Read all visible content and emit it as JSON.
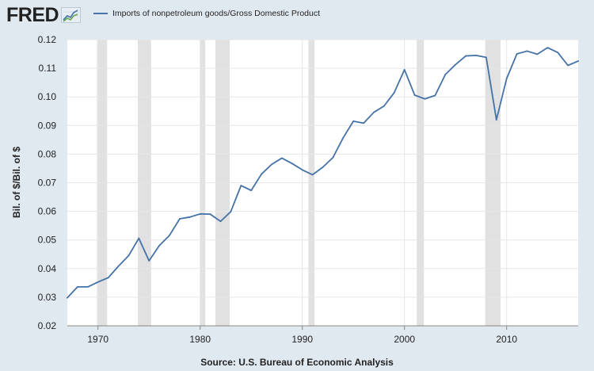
{
  "brand": {
    "logo_text": "FRED",
    "logo_icon": "line-chart-icon"
  },
  "colors": {
    "background": "#e1e9f0",
    "plot_background": "#ffffff",
    "series_line": "#4572a7",
    "recession_band": "#e1e1e1",
    "grid": "#e6e6e6"
  },
  "source_text": "Source: U.S. Bureau of Economic Analysis",
  "chart_data": {
    "type": "line",
    "title": "",
    "xlabel": "",
    "ylabel": "Bil. of $/Bil. of $",
    "xlim": [
      1967,
      2017
    ],
    "ylim": [
      0.02,
      0.12
    ],
    "y_ticks": [
      0.02,
      0.03,
      0.04,
      0.05,
      0.06,
      0.07,
      0.08,
      0.09,
      0.1,
      0.11,
      0.12
    ],
    "y_tick_labels": [
      "0.02",
      "0.03",
      "0.04",
      "0.05",
      "0.06",
      "0.07",
      "0.08",
      "0.09",
      "0.10",
      "0.11",
      "0.12"
    ],
    "x_ticks": [
      1970,
      1980,
      1990,
      2000,
      2010
    ],
    "x_tick_labels": [
      "1970",
      "1980",
      "1990",
      "2000",
      "2010"
    ],
    "grid": true,
    "legend_position": "top-left",
    "recessions": [
      [
        1969.9,
        1970.9
      ],
      [
        1973.9,
        1975.2
      ],
      [
        1980.0,
        1980.5
      ],
      [
        1981.5,
        1982.9
      ],
      [
        1990.6,
        1991.2
      ],
      [
        2001.2,
        2001.9
      ],
      [
        2007.9,
        2009.4
      ]
    ],
    "series": [
      {
        "name": "Imports of nonpetroleum goods/Gross Domestic Product",
        "x": [
          1967,
          1968,
          1969,
          1970,
          1971,
          1972,
          1973,
          1974,
          1975,
          1976,
          1977,
          1978,
          1979,
          1980,
          1981,
          1982,
          1983,
          1984,
          1985,
          1986,
          1987,
          1988,
          1989,
          1990,
          1991,
          1992,
          1993,
          1994,
          1995,
          1996,
          1997,
          1998,
          1999,
          2000,
          2001,
          2002,
          2003,
          2004,
          2005,
          2006,
          2007,
          2008,
          2009,
          2010,
          2011,
          2012,
          2013,
          2014,
          2015,
          2016,
          2017
        ],
        "values": [
          0.0298,
          0.0336,
          0.0336,
          0.0353,
          0.0368,
          0.0408,
          0.0445,
          0.0506,
          0.0427,
          0.048,
          0.0516,
          0.0574,
          0.058,
          0.0591,
          0.059,
          0.0565,
          0.0599,
          0.069,
          0.0673,
          0.073,
          0.0764,
          0.0786,
          0.0767,
          0.0745,
          0.0728,
          0.0754,
          0.0788,
          0.0857,
          0.0915,
          0.0908,
          0.0946,
          0.0968,
          0.1015,
          0.1095,
          0.1006,
          0.0993,
          0.1005,
          0.1078,
          0.1113,
          0.1143,
          0.1145,
          0.1138,
          0.092,
          0.1064,
          0.115,
          0.116,
          0.1149,
          0.1172,
          0.1155,
          0.111,
          0.1125
        ]
      }
    ]
  }
}
